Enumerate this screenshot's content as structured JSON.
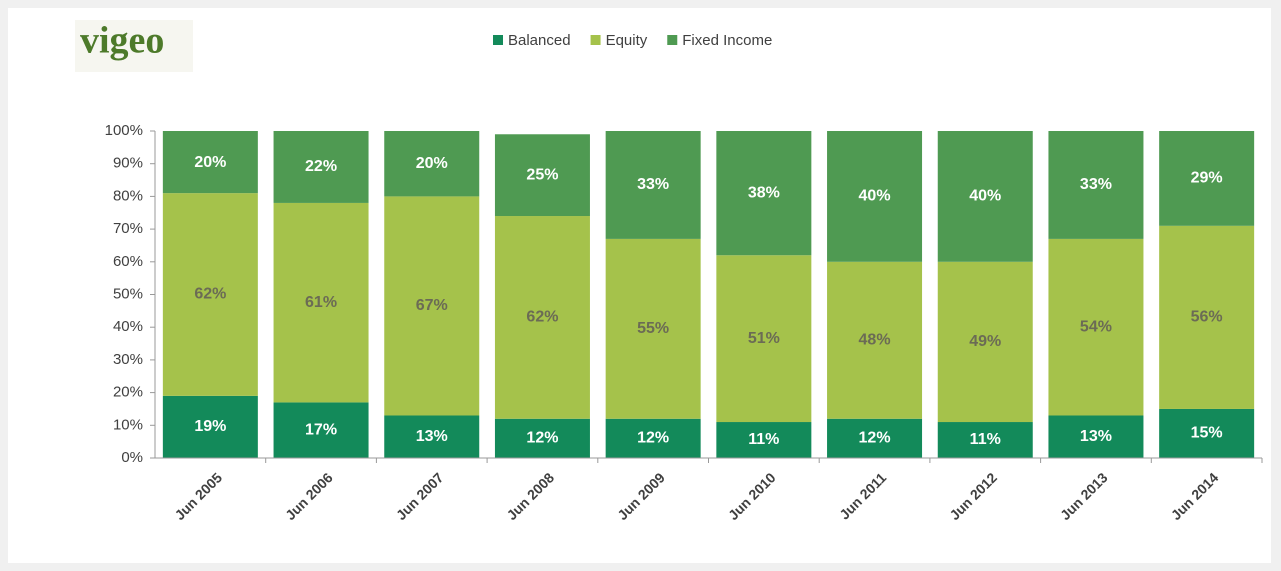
{
  "chart_data": {
    "type": "stacked-bar",
    "logo": "vigeo",
    "categories": [
      "Jun 2005",
      "Jun 2006",
      "Jun 2007",
      "Jun 2008",
      "Jun 2009",
      "Jun 2010",
      "Jun 2011",
      "Jun 2012",
      "Jun 2013",
      "Jun 2014"
    ],
    "series": [
      {
        "name": "Balanced",
        "color": "#138a5a",
        "label_color": "#ffffff",
        "values": [
          19,
          17,
          13,
          12,
          12,
          11,
          12,
          11,
          13,
          15
        ],
        "value_labels": [
          "19%",
          "17%",
          "13%",
          "12%",
          "12%",
          "11%",
          "12%",
          "11%",
          "13%",
          "15%"
        ]
      },
      {
        "name": "Equity",
        "color": "#a5c24b",
        "label_color": "#6b6b55",
        "values": [
          62,
          61,
          67,
          62,
          55,
          51,
          48,
          49,
          54,
          56
        ],
        "value_labels": [
          "62%",
          "61%",
          "67%",
          "62%",
          "55%",
          "51%",
          "48%",
          "49%",
          "54%",
          "56%"
        ]
      },
      {
        "name": "Fixed Income",
        "color": "#4f9a52",
        "label_color": "#ffffff",
        "values": [
          20,
          22,
          20,
          25,
          33,
          38,
          40,
          40,
          33,
          29
        ],
        "value_labels": [
          "20%",
          "22%",
          "20%",
          "25%",
          "33%",
          "38%",
          "40%",
          "40%",
          "33%",
          "29%"
        ]
      }
    ],
    "ylim": [
      0,
      100
    ],
    "yticks": [
      {
        "value": 0,
        "label": "0%"
      },
      {
        "value": 10,
        "label": "10%"
      },
      {
        "value": 20,
        "label": "20%"
      },
      {
        "value": 30,
        "label": "30%"
      },
      {
        "value": 40,
        "label": "40%"
      },
      {
        "value": 50,
        "label": "50%"
      },
      {
        "value": 60,
        "label": "60%"
      },
      {
        "value": 70,
        "label": "70%"
      },
      {
        "value": 80,
        "label": "80%"
      },
      {
        "value": 90,
        "label": "90%"
      },
      {
        "value": 100,
        "label": "100%"
      }
    ],
    "legend": "top"
  }
}
